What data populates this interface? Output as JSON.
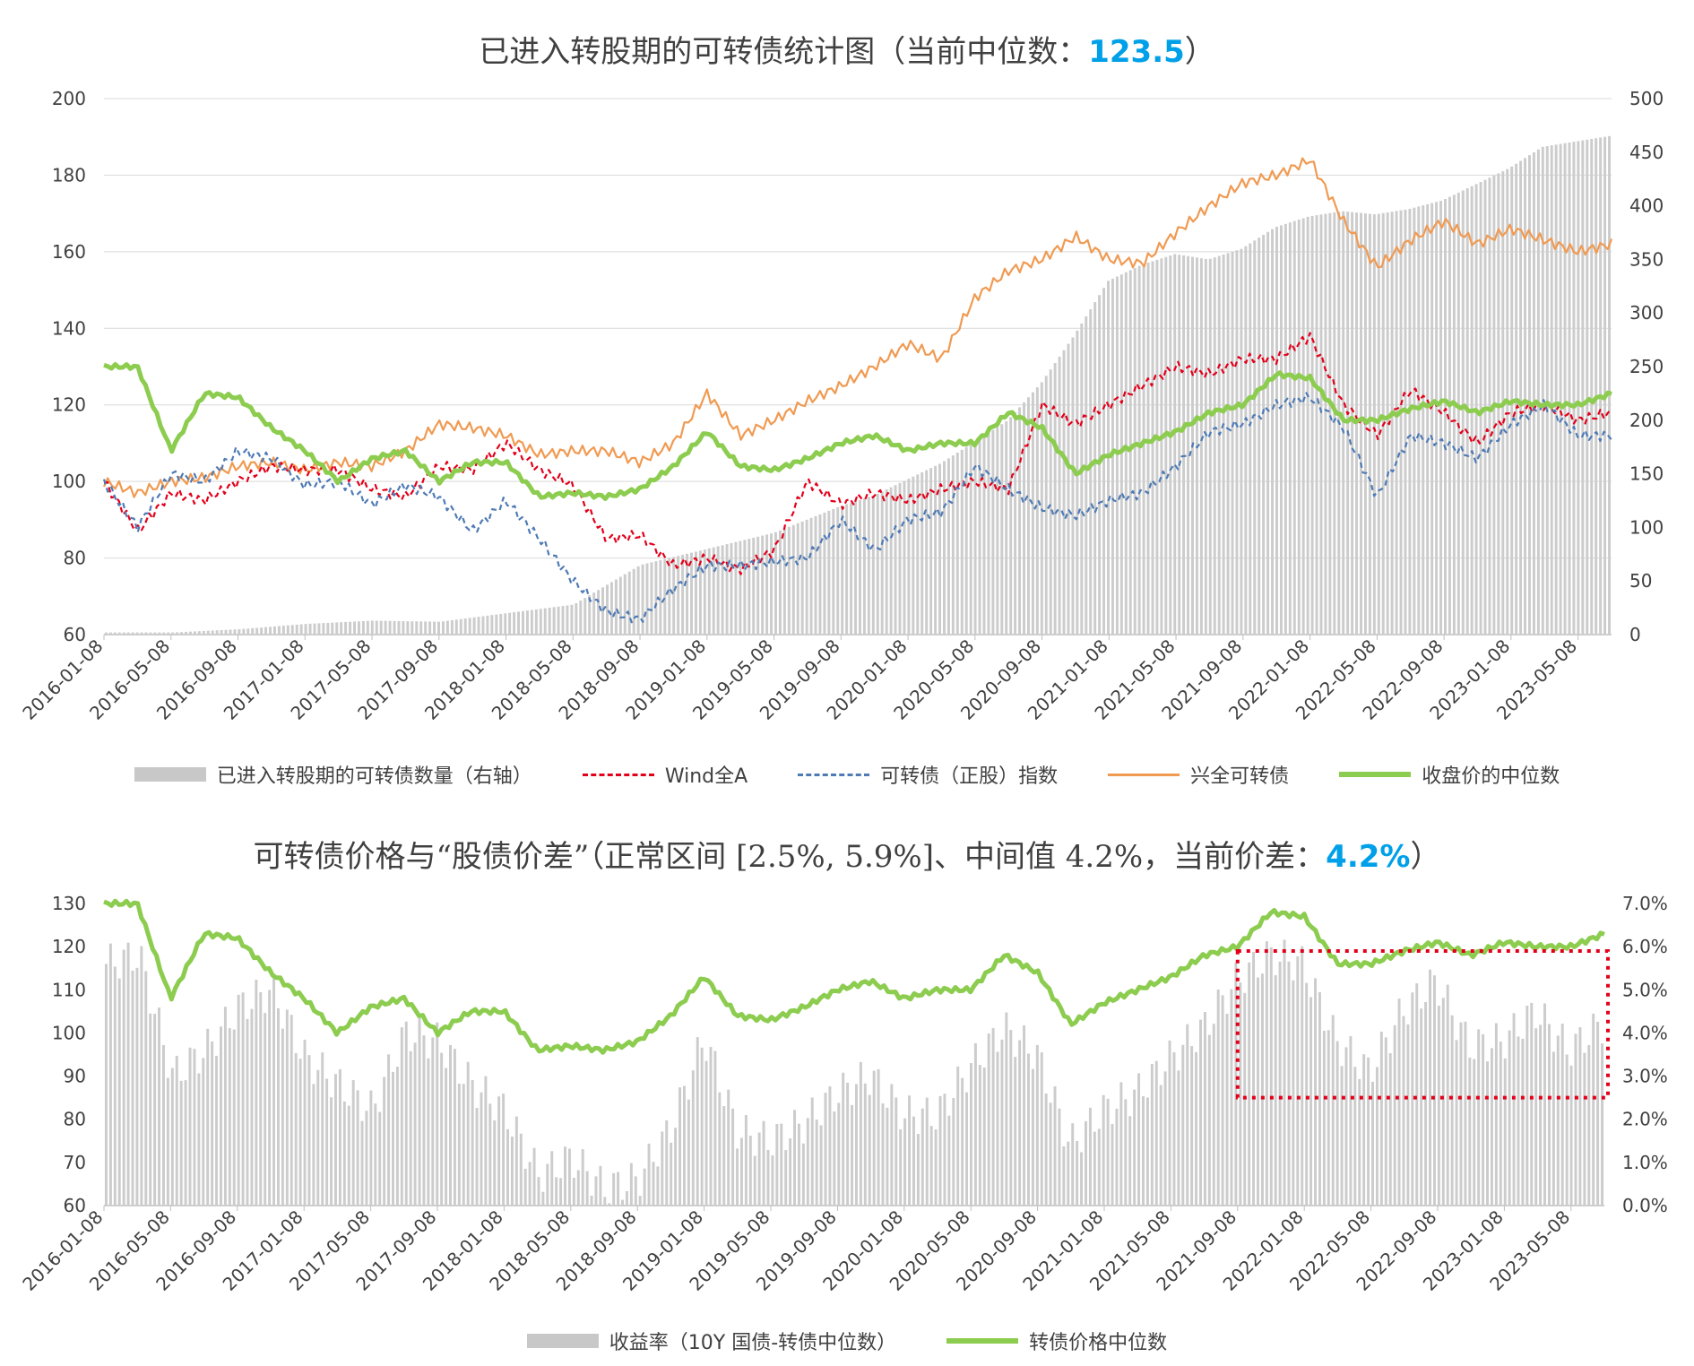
{
  "colors": {
    "bar": "#cccccc",
    "wind_a": "#e3001b",
    "cb_index": "#4f7bb5",
    "xingquan": "#f09a52",
    "median": "#8ccc4f",
    "accent": "#00a0e9",
    "grid": "#d9d9d9",
    "box": "#e3001b"
  },
  "top": {
    "title_prefix": "已进入转股期的可转债统计图（当前中位数：",
    "title_value": "123.5",
    "title_suffix": "）",
    "legend": [
      {
        "label": "已进入转股期的可转债数量（右轴）",
        "style": "bar"
      },
      {
        "label": "Wind全A",
        "style": "dash-red"
      },
      {
        "label": "可转债（正股）指数",
        "style": "dash-blue"
      },
      {
        "label": "兴全可转债",
        "style": "line-orange"
      },
      {
        "label": "收盘价的中位数",
        "style": "line-green"
      }
    ]
  },
  "bottom": {
    "title_prefix": "可转债价格与“股债价差”（正常区间 [2.5%, 5.9%]、中间值 4.2%，当前价差：",
    "title_value": "4.2%",
    "title_suffix": "）",
    "legend": [
      {
        "label": "收益率（10Y 国债-转债中位数）",
        "style": "bar"
      },
      {
        "label": "转债价格中位数",
        "style": "line-green"
      }
    ]
  },
  "chart_data": [
    {
      "type": "bar+line",
      "title": "已进入转股期的可转债统计图（当前中位数：123.5）",
      "x_ticks": [
        "2016-01-08",
        "2016-05-08",
        "2016-09-08",
        "2017-01-08",
        "2017-05-08",
        "2017-09-08",
        "2018-01-08",
        "2018-05-08",
        "2018-09-08",
        "2019-01-08",
        "2019-05-08",
        "2019-09-08",
        "2020-01-08",
        "2020-05-08",
        "2020-09-08",
        "2021-01-08",
        "2021-05-08",
        "2021-09-08",
        "2022-01-08",
        "2022-05-08",
        "2022-09-08",
        "2023-01-08",
        "2023-05-08"
      ],
      "ylim_left": [
        60,
        200
      ],
      "yticks_left": [
        60,
        80,
        100,
        120,
        140,
        160,
        180,
        200
      ],
      "ylim_right": [
        0,
        500
      ],
      "yticks_right": [
        0,
        50,
        100,
        150,
        200,
        250,
        300,
        350,
        400,
        450,
        500
      ],
      "legend_position": "bottom",
      "series": [
        {
          "name": "已进入转股期的可转债数量（右轴）",
          "kind": "bar",
          "axis": "right",
          "x": [
            0,
            2,
            4,
            6,
            8,
            10,
            12,
            14,
            16,
            18,
            20,
            22,
            23,
            24,
            25,
            26,
            27,
            28,
            29,
            30,
            31,
            32,
            33,
            34,
            35,
            36,
            37,
            38,
            39,
            40,
            41,
            42,
            43,
            44,
            45
          ],
          "values": [
            2,
            2,
            5,
            10,
            13,
            12,
            20,
            28,
            65,
            80,
            95,
            120,
            130,
            145,
            160,
            180,
            200,
            235,
            280,
            330,
            345,
            355,
            350,
            360,
            380,
            390,
            395,
            392,
            397,
            405,
            420,
            435,
            455,
            460,
            465
          ]
        },
        {
          "name": "Wind全A",
          "kind": "line",
          "dash": true,
          "axis": "left",
          "x": [
            0,
            1,
            2,
            3,
            4,
            5,
            6,
            7,
            8,
            9,
            10,
            11,
            12,
            13,
            14,
            15,
            16,
            17,
            18,
            19,
            20,
            21,
            22,
            23,
            24,
            25,
            26,
            27,
            28,
            29,
            30,
            31,
            32,
            33,
            34,
            35,
            36,
            37,
            38,
            39,
            40,
            41,
            42,
            43,
            44,
            45
          ],
          "values": [
            100,
            87,
            97,
            95,
            100,
            104,
            103,
            103,
            98,
            96,
            104,
            103,
            110,
            103,
            99,
            85,
            86,
            78,
            80,
            77,
            82,
            100,
            94,
            97,
            95,
            98,
            100,
            98,
            120,
            115,
            120,
            125,
            130,
            128,
            132,
            132,
            138,
            120,
            112,
            124,
            118,
            110,
            118,
            120,
            116,
            118
          ]
        },
        {
          "name": "可转债（正股）指数",
          "kind": "line",
          "dash": true,
          "axis": "left",
          "x": [
            0,
            1,
            2,
            3,
            4,
            5,
            6,
            7,
            8,
            9,
            10,
            11,
            12,
            13,
            14,
            15,
            16,
            17,
            18,
            19,
            20,
            21,
            22,
            23,
            24,
            25,
            26,
            27,
            28,
            29,
            30,
            31,
            32,
            33,
            34,
            35,
            36,
            37,
            38,
            39,
            40,
            41,
            42,
            43,
            44,
            45
          ],
          "values": [
            100,
            88,
            102,
            100,
            108,
            106,
            99,
            100,
            94,
            99,
            96,
            87,
            95,
            85,
            74,
            66,
            64,
            72,
            78,
            78,
            79,
            80,
            90,
            82,
            90,
            92,
            104,
            98,
            93,
            91,
            95,
            97,
            104,
            113,
            115,
            120,
            122,
            114,
            96,
            112,
            110,
            106,
            115,
            120,
            112,
            112
          ]
        },
        {
          "name": "兴全可转债",
          "kind": "line",
          "dash": false,
          "axis": "left",
          "x": [
            0,
            1,
            2,
            3,
            4,
            5,
            6,
            7,
            8,
            9,
            10,
            11,
            12,
            13,
            14,
            15,
            16,
            17,
            18,
            19,
            20,
            21,
            22,
            23,
            24,
            25,
            26,
            27,
            28,
            29,
            30,
            31,
            32,
            33,
            34,
            35,
            36,
            37,
            38,
            39,
            40,
            41,
            42,
            43,
            44,
            45
          ],
          "values": [
            100,
            97,
            100,
            101,
            104,
            105,
            103,
            105,
            104,
            108,
            115,
            114,
            112,
            107,
            108,
            108,
            105,
            110,
            123,
            112,
            116,
            121,
            125,
            130,
            136,
            132,
            148,
            155,
            158,
            164,
            158,
            157,
            165,
            172,
            178,
            180,
            184,
            168,
            156,
            163,
            168,
            162,
            166,
            163,
            160,
            162
          ]
        },
        {
          "name": "收盘价的中位数",
          "kind": "line",
          "dash": false,
          "axis": "left",
          "x": [
            0,
            1,
            2,
            3,
            4,
            5,
            6,
            7,
            8,
            9,
            10,
            11,
            12,
            13,
            14,
            15,
            16,
            17,
            18,
            19,
            20,
            21,
            22,
            23,
            24,
            25,
            26,
            27,
            28,
            29,
            30,
            31,
            32,
            33,
            34,
            35,
            36,
            37,
            38,
            39,
            40,
            41,
            42,
            43,
            44,
            45
          ],
          "values": [
            130,
            130,
            108,
            123,
            122,
            114,
            108,
            100,
            106,
            108,
            100,
            105,
            105,
            96,
            97,
            96,
            98,
            104,
            113,
            104,
            103,
            106,
            110,
            112,
            108,
            110,
            110,
            118,
            114,
            102,
            107,
            110,
            113,
            118,
            120,
            128,
            127,
            116,
            116,
            119,
            121,
            118,
            121,
            120,
            120,
            123
          ]
        }
      ]
    },
    {
      "type": "bar+line",
      "title": "可转债价格与“股债价差”（正常区间 [2.5%, 5.9%]、中间值 4.2%，当前价差：4.2%）",
      "x_ticks": [
        "2016-01-08",
        "2016-05-08",
        "2016-09-08",
        "2017-01-08",
        "2017-05-08",
        "2017-09-08",
        "2018-01-08",
        "2018-05-08",
        "2018-09-08",
        "2019-01-08",
        "2019-05-08",
        "2019-09-08",
        "2020-01-08",
        "2020-05-08",
        "2020-09-08",
        "2021-01-08",
        "2021-05-08",
        "2021-09-08",
        "2022-01-08",
        "2022-05-08",
        "2022-09-08",
        "2023-01-08",
        "2023-05-08"
      ],
      "ylim_left": [
        60,
        130
      ],
      "yticks_left": [
        60,
        70,
        80,
        90,
        100,
        110,
        120,
        130
      ],
      "ylim_right": [
        0,
        7
      ],
      "yticks_right": [
        "0.0%",
        "1.0%",
        "2.0%",
        "3.0%",
        "4.0%",
        "5.0%",
        "6.0%",
        "7.0%"
      ],
      "normal_range_box": {
        "x_start": "2021-09-08",
        "x_end": "2023-07",
        "y_range_pct": [
          2.5,
          5.9
        ]
      },
      "legend_position": "bottom",
      "series": [
        {
          "name": "收益率（10Y 国债-转债中位数）",
          "kind": "bar",
          "axis": "right",
          "x": [
            0,
            1,
            2,
            3,
            4,
            5,
            6,
            7,
            8,
            9,
            10,
            11,
            12,
            13,
            14,
            15,
            16,
            17,
            18,
            19,
            20,
            21,
            22,
            23,
            24,
            25,
            26,
            27,
            28,
            29,
            30,
            31,
            32,
            33,
            34,
            35,
            36,
            37,
            38,
            39,
            40,
            41,
            42,
            43,
            44,
            45
          ],
          "values": [
            5.6,
            5.8,
            3.0,
            3.6,
            4.6,
            5.0,
            3.4,
            2.8,
            2.2,
            4.0,
            3.8,
            2.8,
            2.2,
            0.7,
            1.1,
            0.4,
            0.6,
            1.8,
            3.9,
            1.7,
            1.5,
            1.9,
            2.6,
            3.0,
            2.1,
            2.1,
            3.2,
            4.1,
            3.5,
            1.4,
            2.2,
            2.6,
            3.4,
            4.1,
            5.2,
            5.8,
            5.6,
            3.8,
            3.1,
            4.5,
            5.2,
            3.7,
            3.8,
            4.5,
            3.6,
            4.2
          ]
        },
        {
          "name": "转债价格中位数",
          "kind": "line",
          "axis": "left",
          "x": [
            0,
            1,
            2,
            3,
            4,
            5,
            6,
            7,
            8,
            9,
            10,
            11,
            12,
            13,
            14,
            15,
            16,
            17,
            18,
            19,
            20,
            21,
            22,
            23,
            24,
            25,
            26,
            27,
            28,
            29,
            30,
            31,
            32,
            33,
            34,
            35,
            36,
            37,
            38,
            39,
            40,
            41,
            42,
            43,
            44,
            45
          ],
          "values": [
            130,
            130,
            108,
            123,
            122,
            114,
            108,
            100,
            106,
            108,
            100,
            105,
            105,
            96,
            97,
            96,
            98,
            104,
            113,
            104,
            103,
            106,
            110,
            112,
            108,
            110,
            110,
            118,
            114,
            102,
            107,
            110,
            113,
            118,
            120,
            128,
            127,
            116,
            116,
            119,
            121,
            118,
            121,
            120,
            120,
            123
          ]
        }
      ]
    }
  ]
}
